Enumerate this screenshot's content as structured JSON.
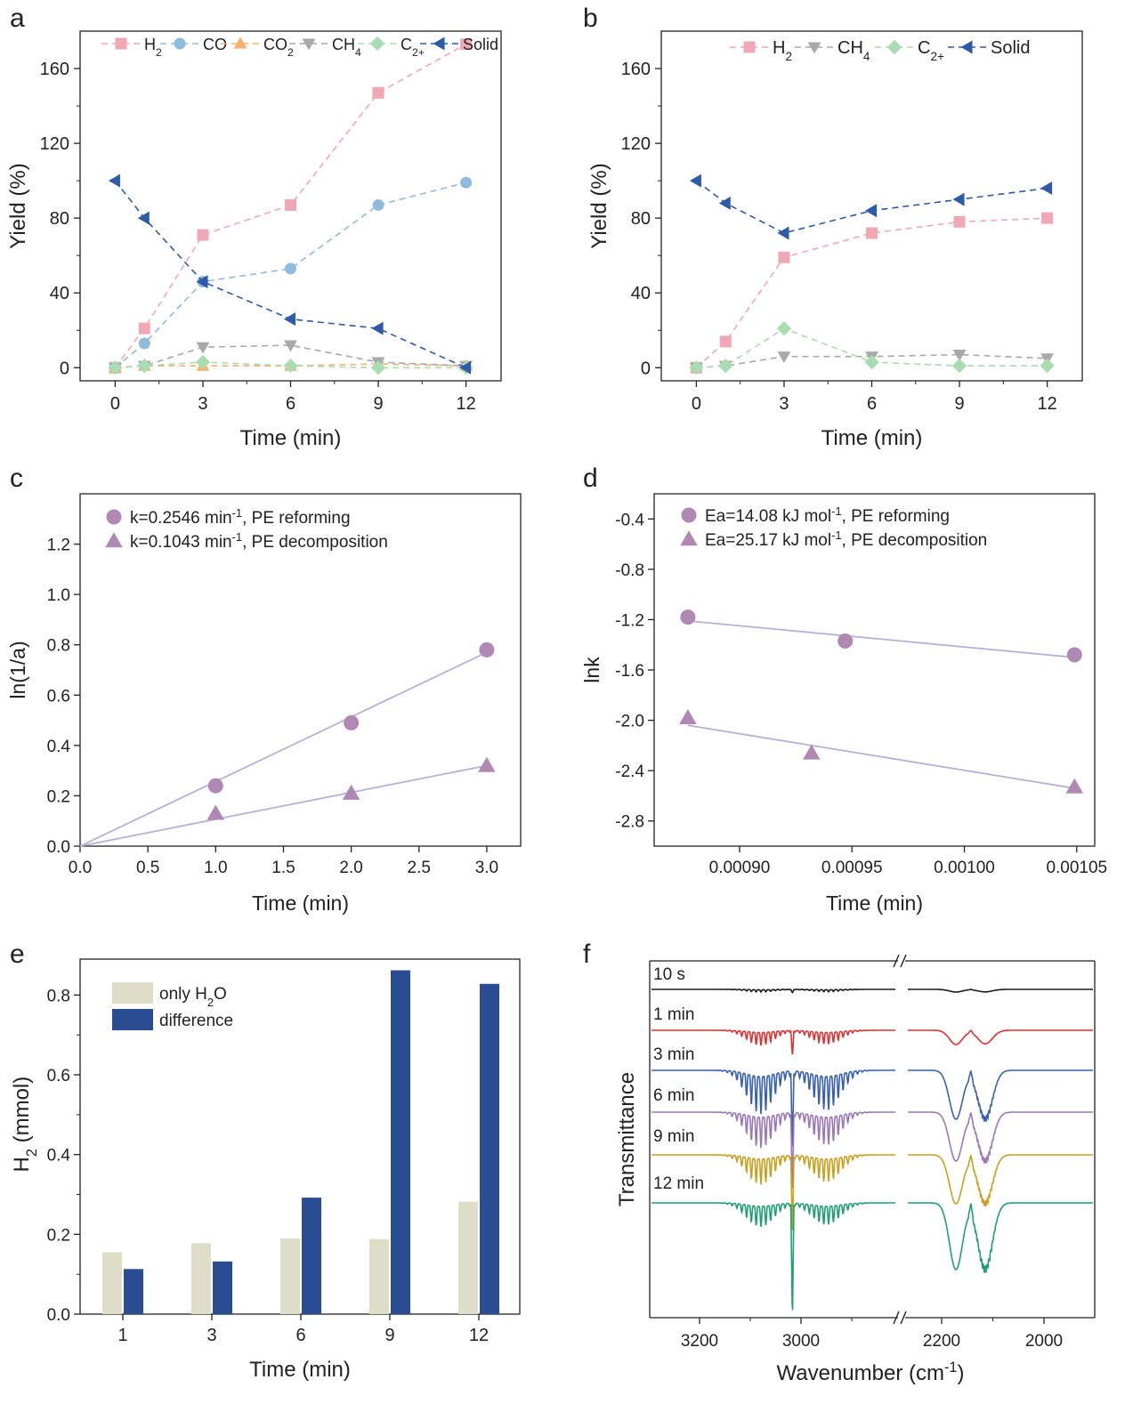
{
  "chart_data": [
    {
      "panel": "a",
      "type": "line",
      "xlabel": "Time (min)",
      "ylabel": "Yield (%)",
      "xlim": [
        -1.2,
        13.2
      ],
      "ylim": [
        -7,
        180
      ],
      "xticks": [
        0,
        3,
        6,
        9,
        12
      ],
      "yticks": [
        0,
        40,
        80,
        120,
        160
      ],
      "legend_position": "top",
      "series": [
        {
          "name": "H2",
          "color": "#f0a8b4",
          "marker": "square",
          "dashed": true,
          "x": [
            0,
            1,
            3,
            6,
            9,
            12
          ],
          "y": [
            0,
            21,
            71,
            87,
            147,
            173
          ]
        },
        {
          "name": "CO",
          "color": "#8fbcdc",
          "marker": "circle",
          "dashed": true,
          "x": [
            0,
            1,
            3,
            6,
            9,
            12
          ],
          "y": [
            0,
            13,
            46,
            53,
            87,
            99
          ]
        },
        {
          "name": "CO2",
          "color": "#f3b26e",
          "marker": "triangle-up",
          "dashed": true,
          "x": [
            0,
            1,
            3,
            6,
            9,
            12
          ],
          "y": [
            0,
            1,
            1,
            1,
            2,
            1
          ]
        },
        {
          "name": "CH4",
          "color": "#a9a9a9",
          "marker": "triangle-down",
          "dashed": true,
          "x": [
            0,
            1,
            3,
            6,
            9,
            12
          ],
          "y": [
            0,
            1,
            11,
            12,
            3,
            1
          ]
        },
        {
          "name": "C2+",
          "color": "#a9dcb0",
          "marker": "diamond",
          "dashed": true,
          "x": [
            0,
            1,
            3,
            6,
            9,
            12
          ],
          "y": [
            0,
            1,
            3,
            1,
            0,
            0
          ]
        },
        {
          "name": "Solid",
          "color": "#2e5aa8",
          "marker": "triangle-left",
          "dashed": true,
          "x": [
            0,
            1,
            3,
            6,
            9,
            12
          ],
          "y": [
            100,
            80,
            46,
            26,
            21,
            0
          ]
        }
      ]
    },
    {
      "panel": "b",
      "type": "line",
      "xlabel": "Time (min)",
      "ylabel": "Yield (%)",
      "xlim": [
        -1.2,
        13.2
      ],
      "ylim": [
        -7,
        180
      ],
      "xticks": [
        0,
        3,
        6,
        9,
        12
      ],
      "yticks": [
        0,
        40,
        80,
        120,
        160
      ],
      "legend_position": "top",
      "series": [
        {
          "name": "H2",
          "color": "#f0a8b4",
          "marker": "square",
          "dashed": true,
          "x": [
            0,
            1,
            3,
            6,
            9,
            12
          ],
          "y": [
            0,
            14,
            59,
            72,
            78,
            80
          ]
        },
        {
          "name": "CH4",
          "color": "#a9a9a9",
          "marker": "triangle-down",
          "dashed": true,
          "x": [
            0,
            1,
            3,
            6,
            9,
            12
          ],
          "y": [
            0,
            1,
            6,
            6,
            7,
            5
          ]
        },
        {
          "name": "C2+",
          "color": "#a9dcb0",
          "marker": "diamond",
          "dashed": true,
          "x": [
            0,
            1,
            3,
            6,
            9,
            12
          ],
          "y": [
            0,
            1,
            21,
            3,
            1,
            1
          ]
        },
        {
          "name": "Solid",
          "color": "#2e5aa8",
          "marker": "triangle-left",
          "dashed": true,
          "x": [
            0,
            1,
            3,
            6,
            9,
            12
          ],
          "y": [
            100,
            88,
            72,
            84,
            90,
            96
          ]
        }
      ]
    },
    {
      "panel": "c",
      "type": "scatter",
      "xlabel": "Time (min)",
      "ylabel": "ln(1/a)",
      "xlim": [
        0,
        3.25
      ],
      "ylim": [
        0,
        1.4
      ],
      "xticks": [
        "0.0",
        "0.5",
        "1.0",
        "1.5",
        "2.0",
        "2.5",
        "3.0"
      ],
      "yticks": [
        "0.0",
        "0.2",
        "0.4",
        "0.6",
        "0.8",
        "1.0",
        "1.2"
      ],
      "legend_position": "top-left",
      "legend_entries": [
        {
          "marker": "circle",
          "main": "k=0.2546 min",
          "sup": "-1",
          "rest": ", PE reforming"
        },
        {
          "marker": "triangle",
          "main": "k=0.1043 min",
          "sup": "-1",
          "rest": ", PE decomposition"
        }
      ],
      "series": [
        {
          "marker": "circle",
          "color": "#b088b4",
          "x": [
            1,
            2,
            3
          ],
          "y": [
            0.24,
            0.49,
            0.78
          ],
          "fit": [
            [
              0,
              0
            ],
            [
              3,
              0.77
            ]
          ]
        },
        {
          "marker": "triangle",
          "color": "#b088b4",
          "x": [
            1,
            2,
            3
          ],
          "y": [
            0.13,
            0.21,
            0.32
          ],
          "fit": [
            [
              0,
              0
            ],
            [
              3,
              0.32
            ]
          ]
        }
      ]
    },
    {
      "panel": "d",
      "type": "scatter",
      "xlabel": "Time (min)",
      "ylabel": "lnk",
      "xlim": [
        0.000862,
        0.001058
      ],
      "ylim": [
        -3.0,
        -0.2
      ],
      "xticks": [
        "0.00090",
        "0.00095",
        "0.00100",
        "0.00105"
      ],
      "yticks": [
        "-0.4",
        "-0.8",
        "-1.2",
        "-1.6",
        "-2.0",
        "-2.4",
        "-2.8"
      ],
      "legend_position": "top-left",
      "legend_entries": [
        {
          "marker": "circle",
          "main": "Ea=14.08 kJ mol",
          "sup": "-1",
          "rest": ", PE reforming"
        },
        {
          "marker": "triangle",
          "main": "Ea=25.17 kJ mol",
          "sup": "-1",
          "rest": ", PE decomposition"
        }
      ],
      "series": [
        {
          "marker": "circle",
          "color": "#b088b4",
          "x": [
            0.000877,
            0.000947,
            0.001049
          ],
          "y": [
            -1.18,
            -1.37,
            -1.48
          ],
          "fit": [
            [
              0.000877,
              -1.21
            ],
            [
              0.001049,
              -1.5
            ]
          ]
        },
        {
          "marker": "triangle",
          "color": "#b088b4",
          "x": [
            0.000877,
            0.000932,
            0.001049
          ],
          "y": [
            -1.98,
            -2.26,
            -2.53
          ],
          "fit": [
            [
              0.000877,
              -2.04
            ],
            [
              0.001049,
              -2.54
            ]
          ]
        }
      ]
    },
    {
      "panel": "e",
      "type": "bar",
      "xlabel": "Time (min)",
      "ylabel_main": "H",
      "ylabel_sub": "2",
      "ylabel_rest": " (mmol)",
      "categories": [
        "1",
        "3",
        "6",
        "9",
        "12"
      ],
      "ylim": [
        0,
        0.89
      ],
      "yticks": [
        "0.0",
        "0.2",
        "0.4",
        "0.6",
        "0.8"
      ],
      "legend_position": "top-left",
      "series": [
        {
          "label_main": "only H",
          "label_sub": "2",
          "label_rest": "O",
          "color": "#dedec8",
          "values": [
            0.155,
            0.178,
            0.19,
            0.188,
            0.282
          ]
        },
        {
          "label_main": "difference",
          "color": "#2a4c92",
          "values": [
            0.113,
            0.132,
            0.292,
            0.862,
            0.828
          ]
        }
      ]
    },
    {
      "panel": "f",
      "type": "line",
      "xlabel_main": "Wavenumber (cm",
      "xlabel_sup": "-1",
      "xlabel_rest": ")",
      "ylabel": "Transmittance",
      "x_axis_break": true,
      "xticks": [
        "3200",
        "3000",
        "2200",
        "2000"
      ],
      "series": [
        {
          "name": "10 s",
          "color": "#1a1a1a"
        },
        {
          "name": "1 min",
          "color": "#e03030"
        },
        {
          "name": "3 min",
          "color": "#3a60b4"
        },
        {
          "name": "6 min",
          "color": "#9a78b8"
        },
        {
          "name": "9 min",
          "color": "#c9a020"
        },
        {
          "name": "12 min",
          "color": "#20a070"
        }
      ]
    }
  ],
  "panel_labels": [
    "a",
    "b",
    "c",
    "d",
    "e",
    "f"
  ]
}
